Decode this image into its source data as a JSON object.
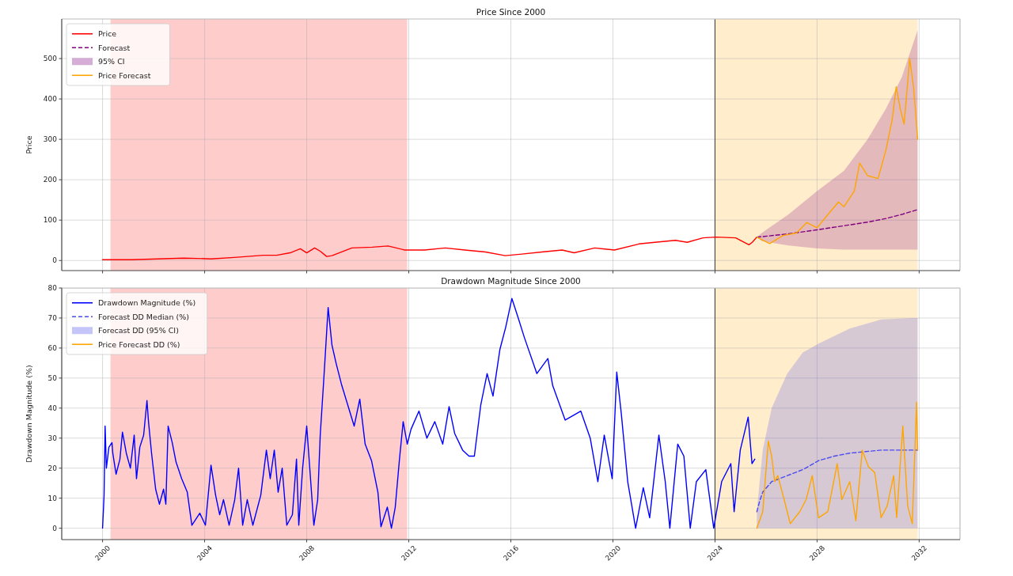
{
  "chart_data": [
    {
      "type": "line",
      "title": "Price Since 2000",
      "ylabel": "Price",
      "xlim": [
        1998.4,
        2033.6
      ],
      "xticks": [
        2000,
        2004,
        2008,
        2012,
        2016,
        2020,
        2024,
        2028,
        2032
      ],
      "ylim": [
        -25,
        598
      ],
      "yticks": [
        0,
        100,
        200,
        300,
        400,
        500
      ],
      "grid": true,
      "legend": "top left",
      "tick_labels": "y",
      "annotations": [
        "95% CI"
      ],
      "bands": [
        {
          "axis": "x",
          "from": 2000.31,
          "to": 2011.94,
          "color": "#ffcccc"
        },
        {
          "axis": "x",
          "from": 2024.0,
          "to": 2031.94,
          "color": "#ffedcc"
        }
      ],
      "ref_lines": [
        {
          "axis": "x",
          "value": 2024,
          "color": "#444444"
        }
      ],
      "series": [
        {
          "name": "Price",
          "color": "#ff0000",
          "x": [
            2000.0,
            2001.15,
            2002.17,
            2003.19,
            2004.25,
            2005.27,
            2006.29,
            2006.82,
            2007.35,
            2007.75,
            2008.0,
            2008.31,
            2008.53,
            2008.78,
            2008.99,
            2009.77,
            2010.57,
            2011.19,
            2011.84,
            2012.62,
            2013.43,
            2014.2,
            2015.01,
            2015.78,
            2016.43,
            2017.21,
            2018.01,
            2018.48,
            2019.29,
            2020.06,
            2021.02,
            2021.64,
            2022.45,
            2022.91,
            2023.53,
            2024.03,
            2024.81,
            2025.33,
            2025.46,
            2025.64
          ],
          "values": [
            2,
            2,
            4,
            6,
            4,
            8,
            13,
            13,
            19,
            29,
            19,
            31,
            23,
            10,
            12,
            31,
            33,
            36,
            26,
            26,
            31,
            26,
            21,
            12,
            16,
            21,
            26,
            19,
            31,
            26,
            41,
            45,
            50,
            45,
            56,
            58,
            56,
            39,
            45,
            58
          ]
        },
        {
          "name": "Forecast",
          "color": "#800080",
          "line_style": "dashed",
          "x": [
            2025.64,
            2025.83,
            2026.88,
            2028.0,
            2029.05,
            2029.98,
            2030.7,
            2031.32,
            2031.94
          ],
          "values": [
            58,
            59,
            66,
            76,
            86,
            95,
            104,
            114,
            126
          ],
          "lower": [
            58,
            48,
            37,
            30,
            27,
            27,
            27,
            27,
            27
          ],
          "upper": [
            58,
            68,
            114,
            172,
            222,
            300,
            376,
            454,
            570
          ]
        },
        {
          "name": "Price Forecast",
          "color": "#ffa500",
          "x": [
            2025.64,
            2026.14,
            2026.67,
            2027.19,
            2027.6,
            2028.0,
            2028.43,
            2028.84,
            2029.05,
            2029.46,
            2029.67,
            2029.98,
            2030.39,
            2030.7,
            2030.95,
            2031.1,
            2031.26,
            2031.41,
            2031.63,
            2031.78,
            2031.88,
            2031.94
          ],
          "values": [
            58,
            42,
            62,
            68,
            94,
            81,
            114,
            145,
            133,
            172,
            241,
            210,
            203,
            274,
            351,
            430,
            376,
            338,
            500,
            429,
            351,
            300
          ]
        }
      ]
    },
    {
      "type": "line",
      "title": "Drawdown Magnitude Since 2000",
      "ylabel": "Drawdown Magnitude (%)",
      "xlim": [
        1998.4,
        2033.6
      ],
      "xticks": [
        2000,
        2004,
        2008,
        2012,
        2016,
        2020,
        2024,
        2028,
        2032
      ],
      "ylim": [
        -3.8,
        80
      ],
      "yticks": [
        0,
        10,
        20,
        30,
        40,
        50,
        60,
        70,
        80
      ],
      "grid": true,
      "legend": "top left",
      "annotations": [
        "Forecast DD (95% CI)"
      ],
      "bands": [
        {
          "axis": "x",
          "from": 2000.31,
          "to": 2011.94,
          "color": "#ffcccc"
        },
        {
          "axis": "x",
          "from": 2024.0,
          "to": 2031.94,
          "color": "#ffedcc"
        }
      ],
      "ref_lines": [
        {
          "axis": "x",
          "value": 2024,
          "color": "#444444"
        }
      ],
      "series": [
        {
          "name": "Drawdown Magnitude (%)",
          "color": "#0000ff",
          "x": [
            2000.0,
            2000.06,
            2000.1,
            2000.15,
            2000.25,
            2000.37,
            2000.4,
            2000.53,
            2000.68,
            2000.78,
            2000.93,
            2001.09,
            2001.24,
            2001.33,
            2001.46,
            2001.61,
            2001.74,
            2001.8,
            2001.92,
            2002.08,
            2002.23,
            2002.39,
            2002.48,
            2002.57,
            2002.73,
            2002.88,
            2003.1,
            2003.32,
            2003.5,
            2003.81,
            2004.03,
            2004.25,
            2004.43,
            2004.59,
            2004.74,
            2004.96,
            2005.18,
            2005.33,
            2005.49,
            2005.67,
            2005.89,
            2006.2,
            2006.42,
            2006.57,
            2006.73,
            2006.88,
            2007.04,
            2007.22,
            2007.44,
            2007.6,
            2007.69,
            2007.84,
            2008.0,
            2008.12,
            2008.28,
            2008.43,
            2008.53,
            2008.68,
            2008.84,
            2008.99,
            2009.15,
            2009.36,
            2009.61,
            2009.86,
            2010.08,
            2010.29,
            2010.54,
            2010.79,
            2010.91,
            2011.16,
            2011.32,
            2011.47,
            2011.63,
            2011.78,
            2011.94,
            2012.09,
            2012.4,
            2012.71,
            2013.02,
            2013.33,
            2013.58,
            2013.8,
            2014.11,
            2014.36,
            2014.57,
            2014.82,
            2015.07,
            2015.3,
            2015.57,
            2015.8,
            2016.04,
            2016.29,
            2016.53,
            2017.02,
            2017.45,
            2017.64,
            2018.13,
            2018.74,
            2019.11,
            2019.41,
            2019.66,
            2019.97,
            2020.15,
            2020.33,
            2020.58,
            2020.89,
            2021.19,
            2021.44,
            2021.8,
            2022.05,
            2022.23,
            2022.54,
            2022.78,
            2023.03,
            2023.27,
            2023.64,
            2023.95,
            2024.26,
            2024.62,
            2024.75,
            2024.99,
            2025.3,
            2025.45,
            2025.56
          ],
          "values": [
            0,
            11,
            34,
            20,
            27,
            28.5,
            25,
            18,
            23,
            32,
            25,
            20,
            31,
            16.5,
            27,
            31,
            42.5,
            35.5,
            25,
            13,
            8,
            13,
            8,
            34,
            28.5,
            22,
            16.5,
            12,
            1,
            5,
            1,
            21,
            11,
            4.5,
            9.5,
            1,
            9.5,
            20,
            1,
            9.5,
            1,
            11,
            26,
            16.5,
            26,
            12,
            20,
            1,
            4.5,
            23,
            1,
            20,
            34,
            20,
            1,
            9.5,
            31,
            51,
            73.5,
            61,
            55,
            48,
            41,
            34,
            43,
            28,
            22.5,
            12,
            0.5,
            7,
            0,
            7,
            22.5,
            35.5,
            28,
            33,
            39,
            30,
            35.5,
            28,
            40.5,
            31.5,
            26,
            24,
            24,
            41,
            51.5,
            44,
            59.5,
            67,
            76.5,
            70,
            63.5,
            51.5,
            56.5,
            47.5,
            36,
            39,
            30,
            15.5,
            31,
            16.5,
            52,
            38,
            15.5,
            0,
            13.5,
            3.5,
            31,
            15.5,
            0,
            28,
            24,
            0,
            15.5,
            19.5,
            0,
            15.5,
            21.5,
            5.5,
            26,
            37,
            21.5,
            23
          ]
        },
        {
          "name": "Forecast DD Median (%)",
          "color": "#4b4bf0",
          "line_style": "dashed",
          "x": [
            2025.64,
            2025.75,
            2025.87,
            2026.22,
            2026.83,
            2027.44,
            2028.06,
            2028.67,
            2029.28,
            2029.9,
            2030.51,
            2031.73,
            2031.94
          ],
          "values": [
            5.5,
            9,
            12,
            15.5,
            17.5,
            19.5,
            22.5,
            24,
            25,
            25.5,
            26,
            26,
            26
          ],
          "lower": [
            0,
            0,
            0,
            0,
            0,
            0,
            0,
            0,
            0,
            0,
            0,
            0,
            0
          ],
          "upper": [
            5.5,
            15.5,
            26,
            40,
            51.5,
            58.5,
            61.5,
            64,
            66.5,
            68,
            69.5,
            70,
            70
          ]
        },
        {
          "name": "Price Forecast DD (%)",
          "color": "#ffa500",
          "x": [
            2025.64,
            2025.87,
            2026.09,
            2026.22,
            2026.34,
            2026.46,
            2026.71,
            2026.95,
            2027.32,
            2027.57,
            2027.81,
            2028.06,
            2028.42,
            2028.79,
            2028.97,
            2029.28,
            2029.52,
            2029.77,
            2030.01,
            2030.26,
            2030.51,
            2030.75,
            2031.0,
            2031.12,
            2031.36,
            2031.55,
            2031.73,
            2031.9,
            2031.94
          ],
          "values": [
            0,
            5.5,
            29,
            24,
            15.5,
            17.5,
            9.5,
            1.5,
            5.5,
            9.5,
            17.5,
            3.5,
            5.5,
            21.5,
            9.5,
            15.5,
            2.5,
            26,
            20.5,
            18.5,
            3.5,
            7.5,
            17.5,
            3.5,
            34,
            7.5,
            1.5,
            42,
            26
          ]
        }
      ]
    }
  ]
}
